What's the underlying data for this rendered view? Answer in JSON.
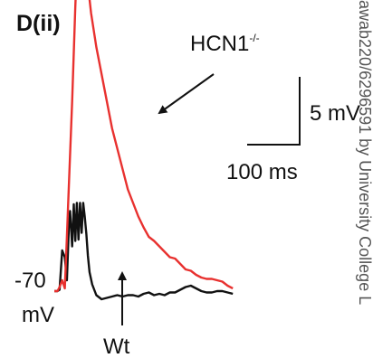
{
  "chart_data": {
    "type": "line",
    "panel_label": "D(ii)",
    "x_unit": "ms",
    "y_unit": "mV",
    "baseline": {
      "value": -70,
      "unit": "mV"
    },
    "scale_bar": {
      "y_label": "5 mV",
      "y_value": 5,
      "x_label": "100 ms",
      "x_value": 100
    },
    "series": [
      {
        "name": "HCN1",
        "superscript": "-/-",
        "color": "#e8312f",
        "x": [
          0,
          6,
          10,
          15,
          20,
          24,
          28,
          34,
          40,
          45,
          48,
          52,
          60,
          70,
          80,
          90,
          100,
          110,
          120,
          130,
          140,
          150,
          160,
          170,
          180,
          190,
          200,
          210,
          220,
          230,
          240,
          250,
          260,
          270,
          280,
          290,
          300,
          310,
          320,
          330,
          340
        ],
        "y": [
          -70,
          -70,
          -69.7,
          -69.2,
          -69.8,
          -66,
          -62,
          -56,
          -49,
          -44,
          -43,
          -43.5,
          -46,
          -49.5,
          -52,
          -54,
          -56,
          -58,
          -59.5,
          -61,
          -62.5,
          -63.5,
          -64.5,
          -65.3,
          -66,
          -66.3,
          -66.7,
          -67.1,
          -67.5,
          -67.6,
          -68,
          -68.4,
          -68.5,
          -68.8,
          -69,
          -69.1,
          -69.1,
          -69.2,
          -69.3,
          -69.6,
          -69.8
        ]
      },
      {
        "name": "Wt",
        "color": "#111111",
        "x": [
          0,
          6,
          10,
          15,
          20,
          24,
          28,
          30,
          34,
          37,
          40,
          43,
          46,
          49,
          52,
          55,
          58,
          61,
          64,
          67,
          72,
          80,
          90,
          100,
          110,
          120,
          130,
          140,
          150,
          160,
          170,
          180,
          190,
          200,
          210,
          220,
          230,
          240,
          250,
          260,
          270,
          280,
          290,
          300,
          310,
          320,
          330,
          340
        ],
        "y": [
          -70,
          -70,
          -69.9,
          -67,
          -67.5,
          -69.2,
          -65,
          -64.1,
          -66.7,
          -63.6,
          -66.3,
          -63.5,
          -66.2,
          -63.5,
          -65.7,
          -63.5,
          -64.5,
          -65.8,
          -67.4,
          -68.6,
          -69.5,
          -70.3,
          -70.6,
          -70.5,
          -70.4,
          -70.3,
          -70.4,
          -70.3,
          -70.3,
          -70.4,
          -70.2,
          -70.1,
          -70.3,
          -70.2,
          -70.3,
          -70.1,
          -70.1,
          -69.9,
          -69.7,
          -69.6,
          -69.8,
          -70,
          -70.1,
          -70.1,
          -70,
          -70,
          -70.1,
          -70.2
        ]
      }
    ]
  },
  "labels": {
    "panel": "D(ii)",
    "hcn_name": "HCN1",
    "hcn_sup": "-/-",
    "scale_y": "5 mV",
    "scale_x": "100 ms",
    "baseline_num": "-70",
    "baseline_unit": "mV",
    "wt": "Wt",
    "watermark": "awab220/6296591 by University College L"
  }
}
